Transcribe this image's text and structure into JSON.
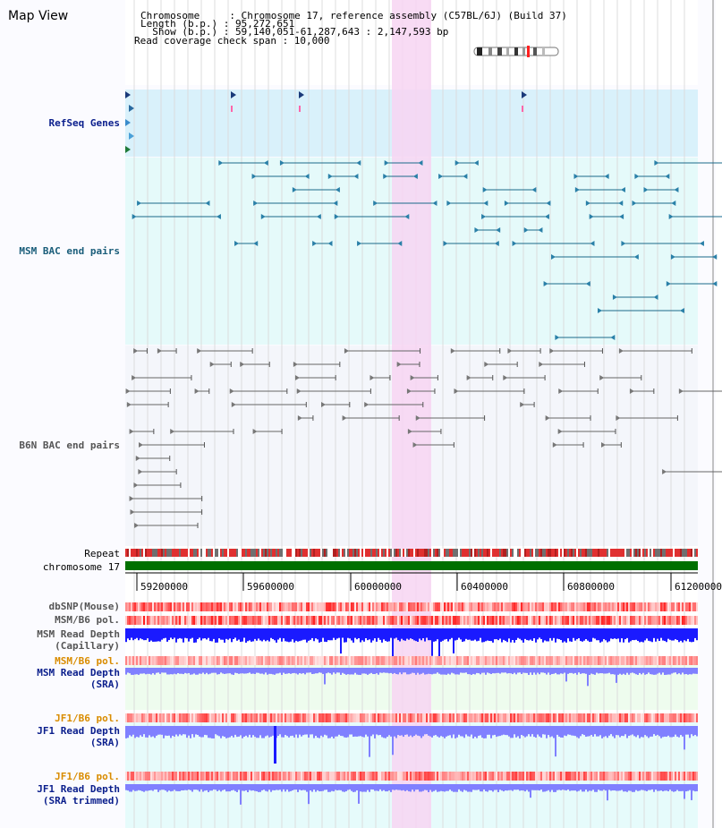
{
  "page": {
    "title": "Map View"
  },
  "header": {
    "chromosome": "Chromosome     : Chromosome 17, reference assembly (C57BL/6J) (Build 37)",
    "length": "Length (b.p.) : 95,272,651",
    "show": "  Show (b.p.) : 59,140,051-61,287,643 : 2,147,593 bp",
    "coverage": "Read coverage check span : 10,000"
  },
  "tracks": {
    "refseq": "RefSeq Genes",
    "msm_bac": "MSM BAC end pairs",
    "b6n_bac": "B6N BAC end pairs",
    "repeat": "Repeat",
    "chromosome": "chromosome 17",
    "dbsnp": "dbSNP(Mouse)",
    "msm_b6_pol": "MSM/B6 pol.",
    "msm_depth_cap_1": "MSM Read Depth",
    "msm_depth_cap_2": "(Capillary)",
    "msm_b6_pol_2": "MSM/B6 pol.",
    "msm_depth_sra_1": "MSM Read Depth",
    "msm_depth_sra_2": "(SRA)",
    "jf1_b6_pol": "JF1/B6 pol.",
    "jf1_depth_sra_1": "JF1 Read Depth",
    "jf1_depth_sra_2": "(SRA)",
    "jf1_b6_pol_2": "JF1/B6 pol.",
    "jf1_depth_trim_1": "JF1 Read Depth",
    "jf1_depth_trim_2": "(SRA trimmed)"
  },
  "axis": {
    "ticks": [
      "59200000",
      "59600000",
      "60000000",
      "60400000",
      "60800000",
      "61200000"
    ]
  },
  "colors": {
    "refseq_bg": "#d9f1fb",
    "msm_bg": "#e5fafa",
    "b6n_bg": "#f4f6fb",
    "highlight": "#f7d5f2",
    "chromosome_bar": "#007000",
    "depth_blue": "#1a1aff",
    "depth_light": "#8080ff",
    "snp_red": "#ff3030"
  }
}
